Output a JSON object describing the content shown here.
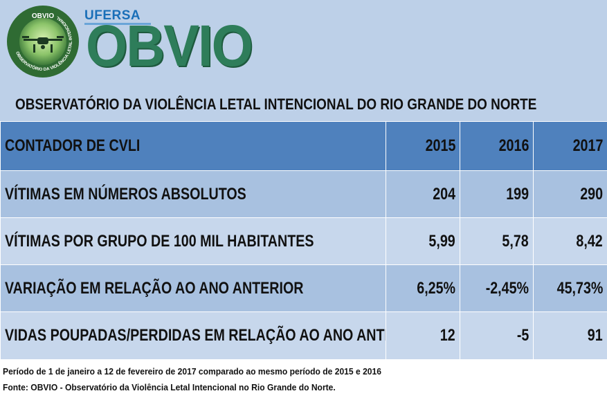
{
  "header": {
    "seal_top_text": "OBVIO",
    "seal_ring_text": "OBSERVATÓRIO DA VIOLÊNCIA LETAL INTENCIONAL",
    "university": "UFERSA",
    "brand": "OBVIO",
    "title": "OBSERVATÓRIO DA VIOLÊNCIA LETAL INTENCIONAL DO RIO GRANDE DO NORTE"
  },
  "table": {
    "columns": [
      "CONTADOR DE CVLI",
      "2015",
      "2016",
      "2017"
    ],
    "rows": [
      {
        "label": "VÍTIMAS EM NÚMEROS ABSOLUTOS",
        "values": [
          "204",
          "199",
          "290"
        ]
      },
      {
        "label": "VÍTIMAS POR GRUPO DE 100 MIL HABITANTES",
        "values": [
          "5,99",
          "5,78",
          "8,42"
        ]
      },
      {
        "label": "VARIAÇÃO EM RELAÇÃO AO ANO ANTERIOR",
        "values": [
          "6,25%",
          "-2,45%",
          "45,73%"
        ]
      },
      {
        "label": "VIDAS POUPADAS/PERDIDAS EM RELAÇÃO AO ANO ANTERIOR",
        "values": [
          "12",
          "-5",
          "91"
        ]
      }
    ]
  },
  "footer": {
    "note": "Período de 1 de janeiro a 12 de fevereiro de 2017 comparado ao mesmo período de 2015 e 2016",
    "source": "Fonte: OBVIO - Observatório da Violência Letal Intencional no Rio Grande do Norte."
  },
  "colors": {
    "header_bg": "#bdd0e8",
    "table_header": "#4f81bd",
    "row_dark": "#a8c1e0",
    "row_light": "#c7d7ec",
    "brand_green": "#2e7d5a",
    "ufersa_blue": "#1a6fb8"
  }
}
